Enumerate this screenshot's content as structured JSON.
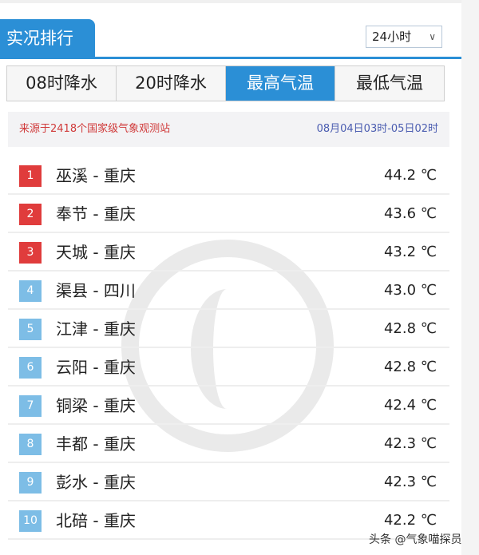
{
  "header": {
    "title": "实况排行",
    "period": "24小时"
  },
  "tabs": [
    {
      "label": "08时降水",
      "active": false
    },
    {
      "label": "20时降水",
      "active": false
    },
    {
      "label": "最高气温",
      "active": true
    },
    {
      "label": "最低气温",
      "active": false
    }
  ],
  "info": {
    "source": "来源于2418个国家级气象观测站",
    "time_range": "08月04日03时-05日02时"
  },
  "colors": {
    "accent": "#2b8fd6",
    "top_rank": "#e03c3c",
    "other_rank": "#7dbde6"
  },
  "rankings": [
    {
      "rank": "1",
      "station": "巫溪 - 重庆",
      "value": "44.2 ℃"
    },
    {
      "rank": "2",
      "station": "奉节 - 重庆",
      "value": "43.6 ℃"
    },
    {
      "rank": "3",
      "station": "天城 - 重庆",
      "value": "43.2 ℃"
    },
    {
      "rank": "4",
      "station": "渠县 - 四川",
      "value": "43.0 ℃"
    },
    {
      "rank": "5",
      "station": "江津 - 重庆",
      "value": "42.8 ℃"
    },
    {
      "rank": "6",
      "station": "云阳 - 重庆",
      "value": "42.8 ℃"
    },
    {
      "rank": "7",
      "station": "铜梁 - 重庆",
      "value": "42.4 ℃"
    },
    {
      "rank": "8",
      "station": "丰都 - 重庆",
      "value": "42.3 ℃"
    },
    {
      "rank": "9",
      "station": "彭水 - 重庆",
      "value": "42.3 ℃"
    },
    {
      "rank": "10",
      "station": "北碚 - 重庆",
      "value": "42.2 ℃"
    }
  ],
  "credit": "头条 @气象喵探员"
}
